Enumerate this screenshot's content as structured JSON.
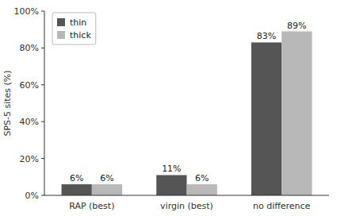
{
  "chart_data": {
    "type": "bar",
    "categories": [
      "RAP (best)",
      "virgin (best)",
      "no difference"
    ],
    "series": [
      {
        "name": "thin",
        "color": "#555555",
        "values": [
          6,
          11,
          83
        ],
        "value_labels": [
          "6%",
          "11%",
          "83%"
        ]
      },
      {
        "name": "thick",
        "color": "#b8b8b8",
        "values": [
          6,
          6,
          89
        ],
        "value_labels": [
          "6%",
          "6%",
          "89%"
        ]
      }
    ],
    "ylabel": "SPS-5 sites (%)",
    "ylim": [
      0,
      100
    ],
    "yticks": [
      {
        "value": 0,
        "label": "0%"
      },
      {
        "value": 20,
        "label": "20%"
      },
      {
        "value": 40,
        "label": "40%"
      },
      {
        "value": 60,
        "label": "60%"
      },
      {
        "value": 80,
        "label": "80%"
      },
      {
        "value": 100,
        "label": "100%"
      }
    ],
    "data_labels": true,
    "legend": "upper left",
    "grid": false
  }
}
